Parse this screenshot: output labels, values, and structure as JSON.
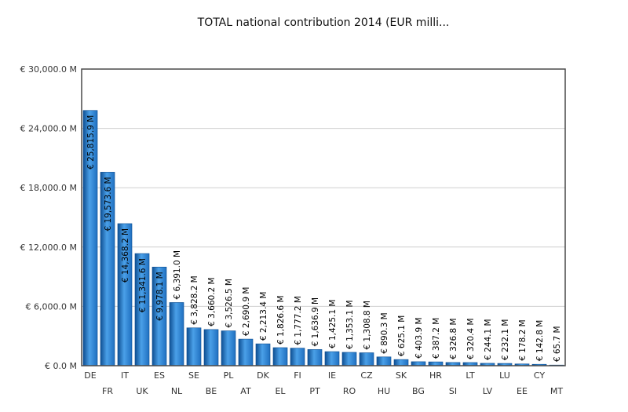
{
  "chart_data": {
    "type": "bar",
    "title": "TOTAL national contribution 2014 (EUR milli...",
    "xlabel": "",
    "ylabel": "",
    "ylim": [
      0,
      30000
    ],
    "y_ticks": [
      0,
      6000,
      12000,
      18000,
      24000,
      30000
    ],
    "y_tick_labels": [
      "€ 0.0 M",
      "€ 6,000.0 M",
      "€ 12,000.0 M",
      "€ 18,000.0 M",
      "€ 24,000.0 M",
      "€ 30,000.0 M"
    ],
    "grid": true,
    "categories": [
      "DE",
      "FR",
      "IT",
      "UK",
      "ES",
      "NL",
      "SE",
      "BE",
      "PL",
      "AT",
      "DK",
      "EL",
      "FI",
      "PT",
      "IE",
      "RO",
      "CZ",
      "HU",
      "SK",
      "BG",
      "HR",
      "SI",
      "LT",
      "LV",
      "LU",
      "EE",
      "CY",
      "MT"
    ],
    "values": [
      25815.9,
      19573.6,
      14368.2,
      11341.6,
      9978.1,
      6391.0,
      3828.2,
      3660.2,
      3526.5,
      2690.9,
      2213.4,
      1826.6,
      1777.2,
      1636.9,
      1425.1,
      1353.1,
      1308.8,
      890.3,
      625.1,
      403.9,
      387.2,
      326.8,
      320.4,
      244.1,
      232.1,
      178.2,
      142.8,
      65.7
    ],
    "data_labels": [
      "€ 25,815.9 M",
      "€ 19,573.6 M",
      "€ 14,368.2 M",
      "€ 11,341.6 M",
      "€ 9,978.1 M",
      "€ 6,391.0 M",
      "€ 3,828.2 M",
      "€ 3,660.2 M",
      "€ 3,526.5 M",
      "€ 2,690.9 M",
      "€ 2,213.4 M",
      "€ 1,826.6 M",
      "€ 1,777.2 M",
      "€ 1,636.9 M",
      "€ 1,425.1 M",
      "€ 1,353.1 M",
      "€ 1,308.8 M",
      "€ 890.3 M",
      "€ 625.1 M",
      "€ 403.9 M",
      "€ 387.2 M",
      "€ 326.8 M",
      "€ 320.4 M",
      "€ 244.1 M",
      "€ 232.1 M",
      "€ 178.2 M",
      "€ 142.8 M",
      "€ 65.7 M"
    ],
    "bar_color": "#1f6fbf",
    "bar_color_light": "#4aa0e8",
    "bar_color_dark": "#0e4f92"
  }
}
